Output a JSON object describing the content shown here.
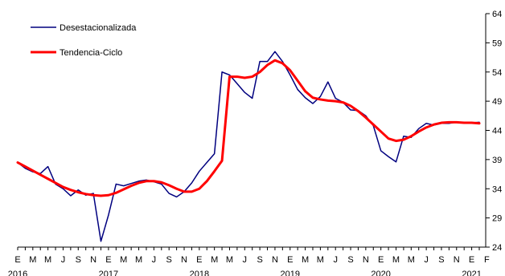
{
  "chart_data": {
    "type": "line",
    "title": "",
    "xlabel": "",
    "ylabel": "",
    "ylim": [
      24,
      64
    ],
    "y_ticks": [
      24,
      29,
      34,
      39,
      44,
      49,
      54,
      59,
      64
    ],
    "y_axis_side": "right",
    "grid": false,
    "legend_position": "top-left",
    "x_month_labels": [
      "E",
      "M",
      "M",
      "J",
      "S",
      "N",
      "E",
      "M",
      "M",
      "J",
      "S",
      "N",
      "E",
      "M",
      "M",
      "J",
      "S",
      "N",
      "E",
      "M",
      "M",
      "J",
      "S",
      "N",
      "E",
      "M",
      "M",
      "J",
      "S",
      "N",
      "E",
      "F"
    ],
    "x_year_labels": [
      {
        "label": "2016",
        "month_index": 0
      },
      {
        "label": "2017",
        "month_index": 12
      },
      {
        "label": "2018",
        "month_index": 24
      },
      {
        "label": "2019",
        "month_index": 36
      },
      {
        "label": "2020",
        "month_index": 48
      },
      {
        "label": "2021",
        "month_index": 60
      }
    ],
    "series": [
      {
        "name": "Desestacionalizada",
        "color": "#00007f",
        "width": 1.5,
        "x": [
          0,
          1,
          2,
          3,
          4,
          5,
          6,
          7,
          8,
          9,
          10,
          11,
          12,
          13,
          14,
          15,
          16,
          17,
          18,
          19,
          20,
          21,
          22,
          23,
          24,
          25,
          26,
          27,
          28,
          29,
          30,
          31,
          32,
          33,
          34,
          35,
          36,
          37,
          38,
          39,
          40,
          41,
          42,
          43,
          44,
          45,
          46,
          47,
          48,
          49,
          50,
          51,
          52,
          53,
          54,
          55,
          56,
          57,
          58,
          59,
          60,
          61
        ],
        "values": [
          38.5,
          37.5,
          36.9,
          36.6,
          37.8,
          34.8,
          34.0,
          32.8,
          33.8,
          32.9,
          33.2,
          25.0,
          29.5,
          34.8,
          34.5,
          34.9,
          35.3,
          35.5,
          35.2,
          34.8,
          33.2,
          32.6,
          33.5,
          35.0,
          37.0,
          38.5,
          40.0,
          54.0,
          53.5,
          52.0,
          50.5,
          49.5,
          55.8,
          55.8,
          57.5,
          55.8,
          53.5,
          51.0,
          49.6,
          48.6,
          49.8,
          52.3,
          49.5,
          48.8,
          47.5,
          47.4,
          46.5,
          44.8,
          40.5,
          39.5,
          38.6,
          43.0,
          42.8,
          44.3,
          45.2,
          44.9,
          45.2,
          45.2,
          45.4,
          45.3,
          45.3,
          45.4
        ]
      },
      {
        "name": "Tendencia-Ciclo",
        "color": "#ff0000",
        "width": 3,
        "x": [
          0,
          1,
          2,
          3,
          4,
          5,
          6,
          7,
          8,
          9,
          10,
          11,
          12,
          13,
          14,
          15,
          16,
          17,
          18,
          19,
          20,
          21,
          22,
          23,
          24,
          25,
          26,
          27,
          28,
          29,
          30,
          31,
          32,
          33,
          34,
          35,
          36,
          37,
          38,
          39,
          40,
          41,
          42,
          43,
          44,
          45,
          46,
          47,
          48,
          49,
          50,
          51,
          52,
          53,
          54,
          55,
          56,
          57,
          58,
          59,
          60,
          61
        ],
        "values": [
          38.5,
          37.8,
          37.1,
          36.4,
          35.7,
          35.0,
          34.3,
          33.8,
          33.4,
          33.1,
          32.9,
          32.8,
          32.9,
          33.3,
          33.9,
          34.5,
          35.0,
          35.3,
          35.3,
          35.1,
          34.6,
          34.0,
          33.5,
          33.5,
          34.0,
          35.3,
          37.0,
          38.8,
          53.2,
          53.2,
          53.0,
          53.2,
          54.0,
          55.2,
          56.0,
          55.5,
          54.3,
          52.5,
          50.7,
          49.6,
          49.3,
          49.1,
          49.0,
          48.8,
          48.2,
          47.3,
          46.2,
          45.0,
          43.8,
          42.6,
          42.2,
          42.4,
          43.0,
          43.8,
          44.5,
          45.0,
          45.3,
          45.4,
          45.4,
          45.3,
          45.3,
          45.2
        ]
      }
    ]
  }
}
